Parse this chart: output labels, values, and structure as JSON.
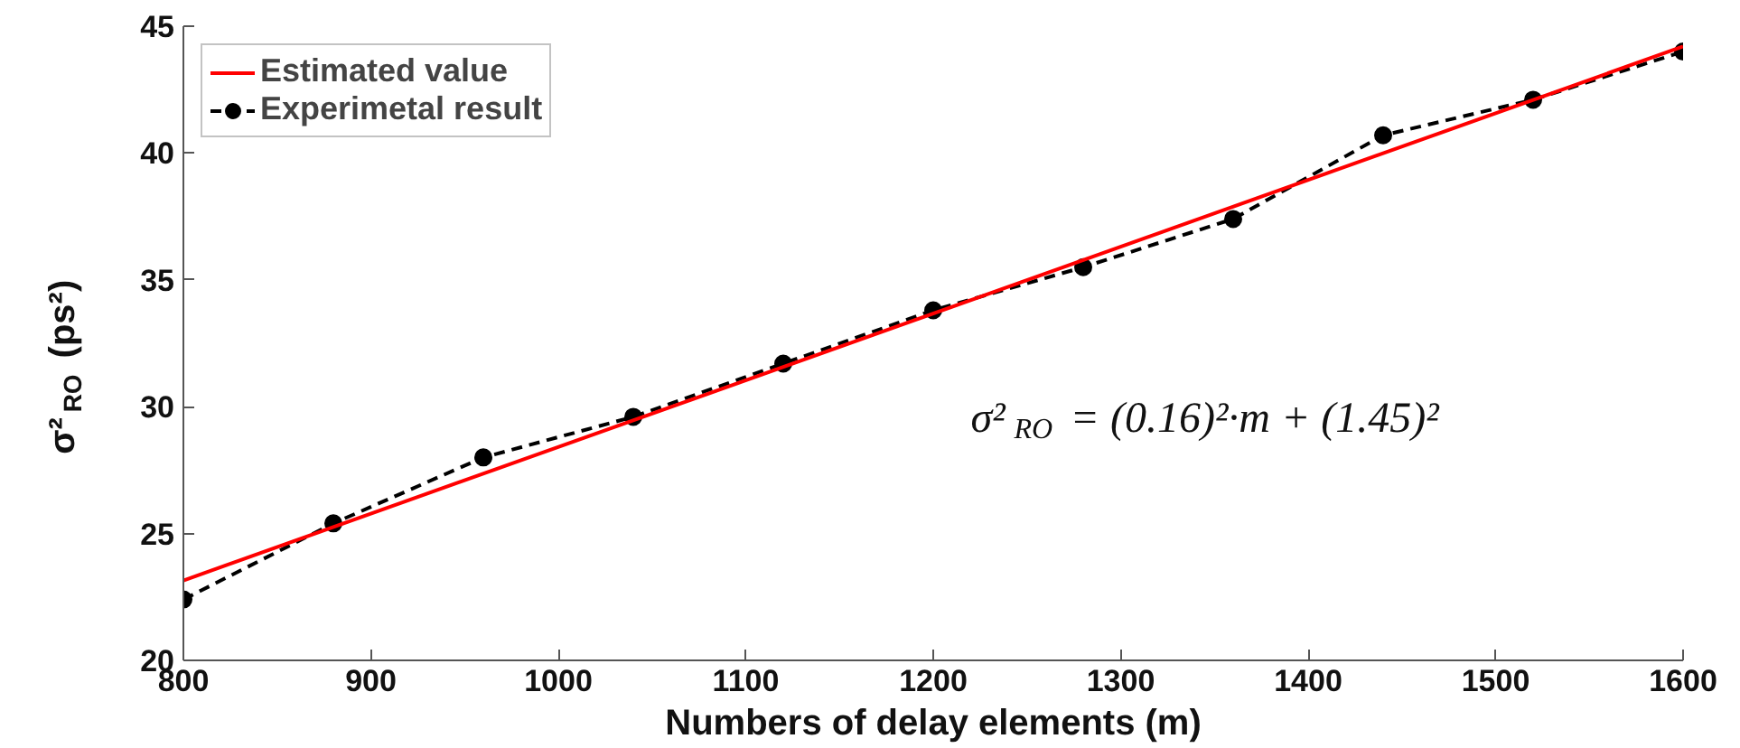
{
  "chart_data": {
    "type": "line",
    "xlabel": "Numbers of delay elements (m)",
    "ylabel": "σ²$_{RO}$ (ps²)",
    "xlim": [
      800,
      1600
    ],
    "xticks": [
      800,
      900,
      1000,
      1100,
      1200,
      1300,
      1400,
      1500,
      1600
    ],
    "ylim": [
      20,
      45
    ],
    "yticks": [
      20,
      25,
      30,
      35,
      40,
      45
    ],
    "series": [
      {
        "name": "Estimated value",
        "color": "#ff0000",
        "x": [
          800,
          1600
        ],
        "values": [
          23.15,
          44.2
        ],
        "line_style": "solid",
        "marker": "none"
      },
      {
        "name": "Experimetal result",
        "color": "#000000",
        "x": [
          800,
          880,
          960,
          1040,
          1120,
          1200,
          1280,
          1360,
          1440,
          1520,
          1600
        ],
        "values": [
          22.4,
          25.4,
          28.0,
          29.6,
          31.7,
          33.8,
          35.5,
          37.4,
          40.7,
          42.1,
          44.0
        ],
        "line_style": "dashed",
        "marker": "circle"
      }
    ],
    "annotations": [
      "σ²$_{RO}$ = (0.16)²·m + (1.45)²"
    ],
    "legend": "top left",
    "grid": false
  }
}
